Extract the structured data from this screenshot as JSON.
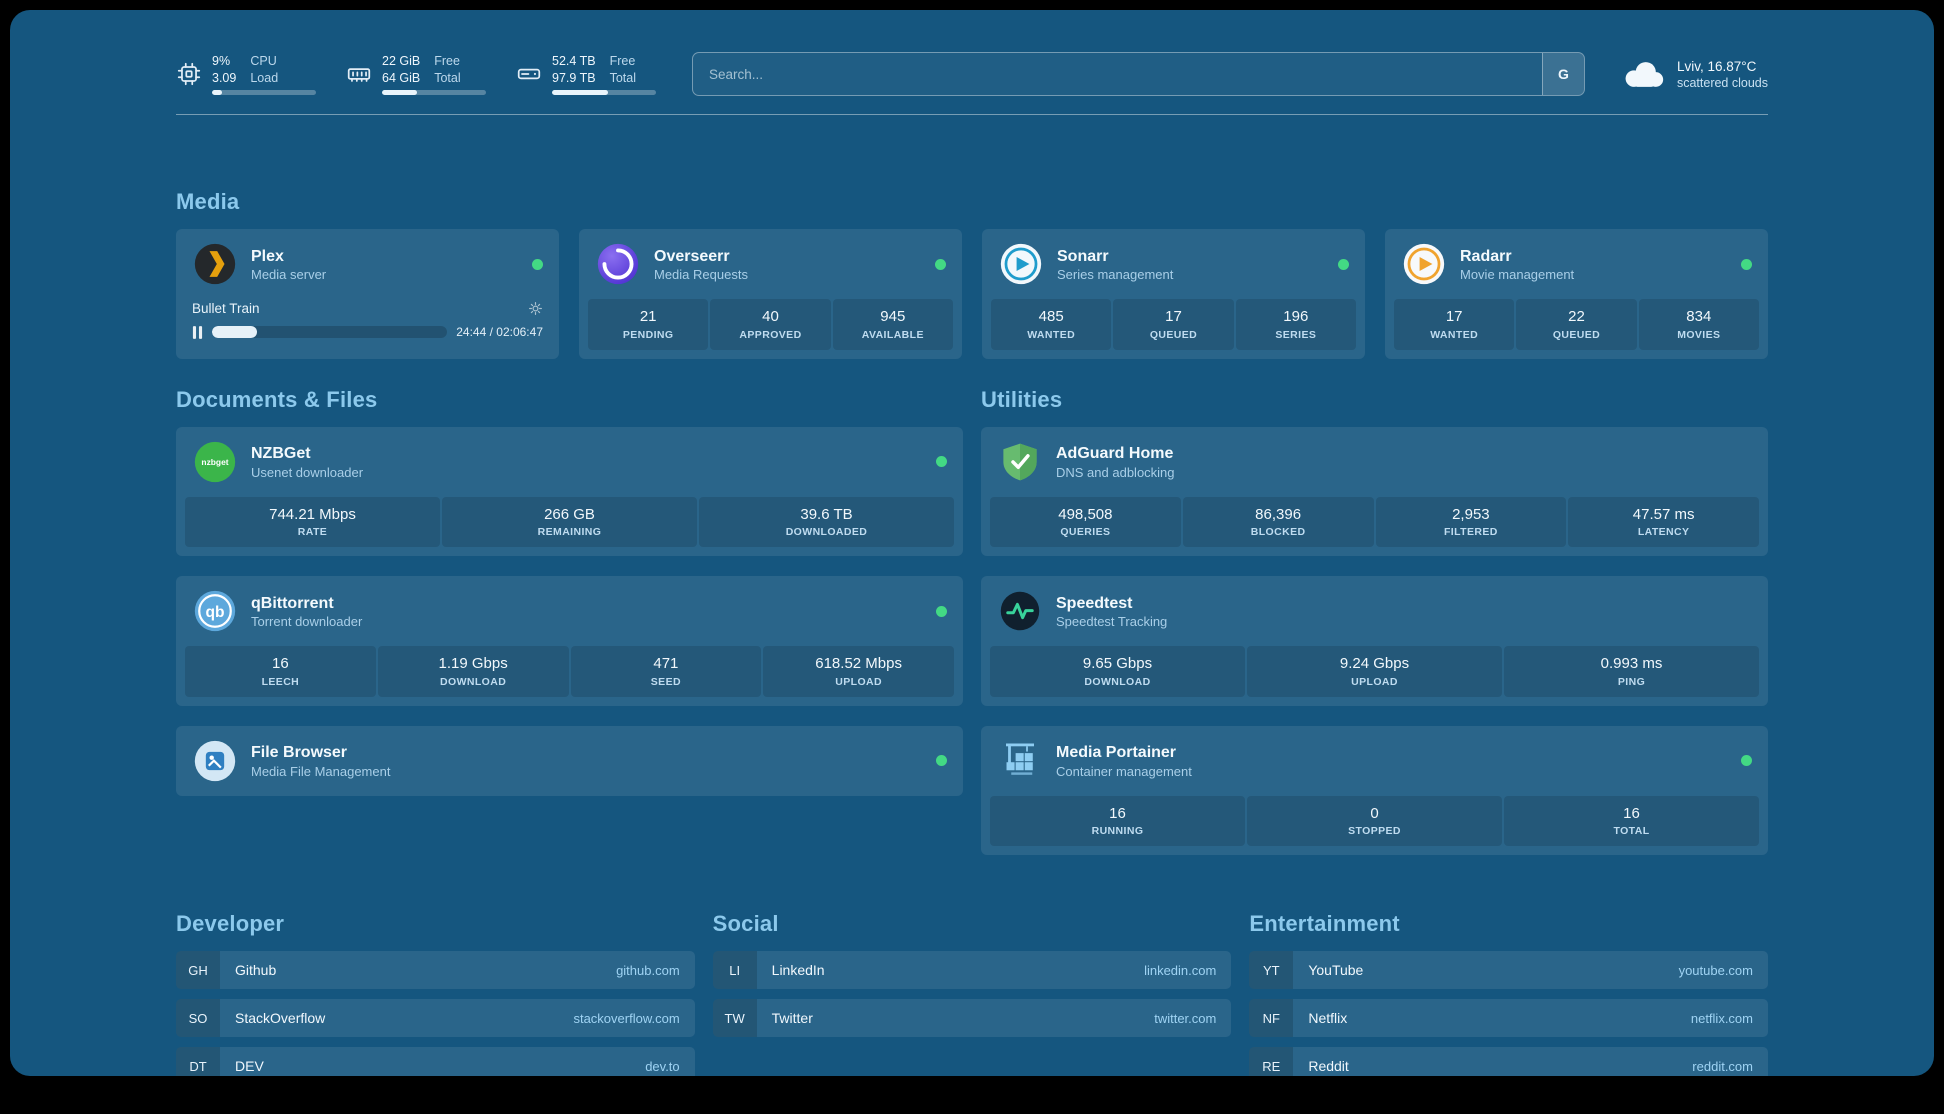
{
  "theme": {
    "background": "#15567f",
    "heading_color": "#8cc9ec",
    "status_green": "#43d984",
    "url_color": "#9fd3f3"
  },
  "header": {
    "resources": [
      {
        "name": "cpu",
        "values": [
          "9%",
          "3.09"
        ],
        "labels": [
          "CPU",
          "Load"
        ],
        "progress": 10
      },
      {
        "name": "memory",
        "values": [
          "22 GiB",
          "64 GiB"
        ],
        "labels": [
          "Free",
          "Total"
        ],
        "progress": 34
      },
      {
        "name": "disk",
        "values": [
          "52.4 TB",
          "97.9 TB"
        ],
        "labels": [
          "Free",
          "Total"
        ],
        "progress": 54
      }
    ],
    "search": {
      "placeholder": "Search...",
      "button_label": "G"
    },
    "weather": {
      "location": "Lviv, 16.87°C",
      "condition": "scattered clouds"
    }
  },
  "icon_labels": {
    "nzbget": "nzbget",
    "qbittorrent": "qb"
  },
  "sections": {
    "media": {
      "title": "Media",
      "plex": {
        "name": "Plex",
        "desc": "Media server",
        "now_playing": "Bullet Train",
        "time": "24:44 / 02:06:47",
        "progress": 19
      },
      "overseerr": {
        "name": "Overseerr",
        "desc": "Media Requests",
        "stats": [
          {
            "value": "21",
            "label": "PENDING"
          },
          {
            "value": "40",
            "label": "APPROVED"
          },
          {
            "value": "945",
            "label": "AVAILABLE"
          }
        ]
      },
      "sonarr": {
        "name": "Sonarr",
        "desc": "Series management",
        "stats": [
          {
            "value": "485",
            "label": "WANTED"
          },
          {
            "value": "17",
            "label": "QUEUED"
          },
          {
            "value": "196",
            "label": "SERIES"
          }
        ]
      },
      "radarr": {
        "name": "Radarr",
        "desc": "Movie management",
        "stats": [
          {
            "value": "17",
            "label": "WANTED"
          },
          {
            "value": "22",
            "label": "QUEUED"
          },
          {
            "value": "834",
            "label": "MOVIES"
          }
        ]
      }
    },
    "documents": {
      "title": "Documents & Files",
      "nzbget": {
        "name": "NZBGet",
        "desc": "Usenet downloader",
        "stats": [
          {
            "value": "744.21 Mbps",
            "label": "RATE"
          },
          {
            "value": "266 GB",
            "label": "REMAINING"
          },
          {
            "value": "39.6 TB",
            "label": "DOWNLOADED"
          }
        ]
      },
      "qbittorrent": {
        "name": "qBittorrent",
        "desc": "Torrent downloader",
        "stats": [
          {
            "value": "16",
            "label": "LEECH"
          },
          {
            "value": "1.19 Gbps",
            "label": "DOWNLOAD"
          },
          {
            "value": "471",
            "label": "SEED"
          },
          {
            "value": "618.52 Mbps",
            "label": "UPLOAD"
          }
        ]
      },
      "filebrowser": {
        "name": "File Browser",
        "desc": "Media File Management"
      }
    },
    "utilities": {
      "title": "Utilities",
      "adguard": {
        "name": "AdGuard Home",
        "desc": "DNS and adblocking",
        "stats": [
          {
            "value": "498,508",
            "label": "QUERIES"
          },
          {
            "value": "86,396",
            "label": "BLOCKED"
          },
          {
            "value": "2,953",
            "label": "FILTERED"
          },
          {
            "value": "47.57 ms",
            "label": "LATENCY"
          }
        ]
      },
      "speedtest": {
        "name": "Speedtest",
        "desc": "Speedtest Tracking",
        "stats": [
          {
            "value": "9.65 Gbps",
            "label": "DOWNLOAD"
          },
          {
            "value": "9.24 Gbps",
            "label": "UPLOAD"
          },
          {
            "value": "0.993 ms",
            "label": "PING"
          }
        ]
      },
      "portainer": {
        "name": "Media Portainer",
        "desc": "Container management",
        "stats": [
          {
            "value": "16",
            "label": "RUNNING"
          },
          {
            "value": "0",
            "label": "STOPPED"
          },
          {
            "value": "16",
            "label": "TOTAL"
          }
        ]
      }
    },
    "bookmarks": [
      {
        "title": "Developer",
        "items": [
          {
            "abbr": "GH",
            "name": "Github",
            "url": "github.com"
          },
          {
            "abbr": "SO",
            "name": "StackOverflow",
            "url": "stackoverflow.com"
          },
          {
            "abbr": "DT",
            "name": "DEV",
            "url": "dev.to"
          }
        ]
      },
      {
        "title": "Social",
        "items": [
          {
            "abbr": "LI",
            "name": "LinkedIn",
            "url": "linkedin.com"
          },
          {
            "abbr": "TW",
            "name": "Twitter",
            "url": "twitter.com"
          }
        ]
      },
      {
        "title": "Entertainment",
        "items": [
          {
            "abbr": "YT",
            "name": "YouTube",
            "url": "youtube.com"
          },
          {
            "abbr": "NF",
            "name": "Netflix",
            "url": "netflix.com"
          },
          {
            "abbr": "RE",
            "name": "Reddit",
            "url": "reddit.com"
          }
        ]
      }
    ]
  }
}
